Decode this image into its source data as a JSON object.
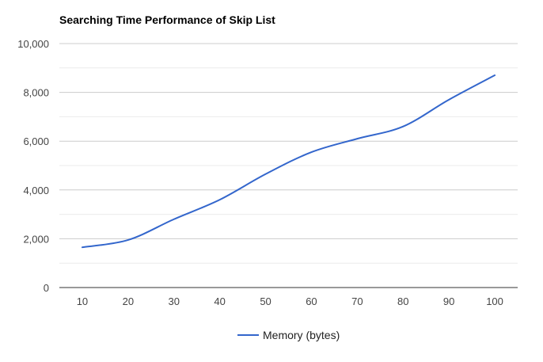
{
  "chart_data": {
    "type": "line",
    "title": "Searching Time Performance of Skip List",
    "xlabel": "",
    "ylabel": "",
    "categories": [
      "10",
      "20",
      "30",
      "40",
      "50",
      "60",
      "70",
      "80",
      "90",
      "100"
    ],
    "series": [
      {
        "name": "Memory (bytes)",
        "color": "#3366cc",
        "values": [
          1650,
          1950,
          2800,
          3600,
          4650,
          5550,
          6100,
          6600,
          7700,
          8700
        ]
      }
    ],
    "ylim": [
      0,
      10000
    ],
    "yticks": [
      0,
      2000,
      4000,
      6000,
      8000,
      10000
    ],
    "ytick_labels": [
      "0",
      "2,000",
      "4,000",
      "6,000",
      "8,000",
      "10,000"
    ],
    "grid": true,
    "legend_position": "bottom",
    "colors": {
      "line": "#3366cc",
      "gridline": "#cccccc",
      "baseline": "#333333",
      "background": "#ffffff"
    }
  }
}
